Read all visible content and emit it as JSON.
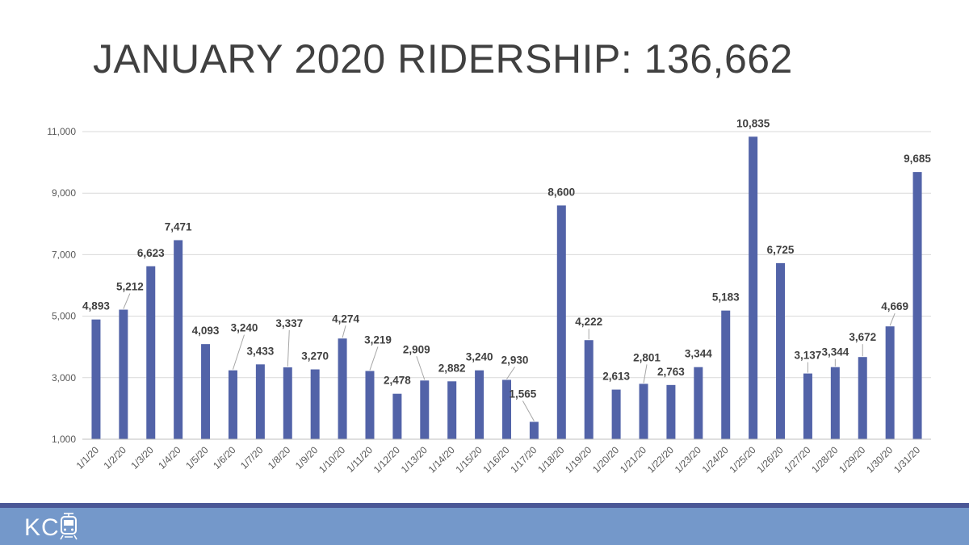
{
  "title": "JANUARY 2020 RIDERSHIP: 136,662",
  "footer": {
    "logo_text": "KC",
    "logo_icon": "streetcar-icon"
  },
  "colors": {
    "bar": "#5263a8",
    "footer_band": "#7498ca",
    "footer_stripe": "#4a5796",
    "title": "#404040"
  },
  "chart_data": {
    "type": "bar",
    "title": "",
    "xlabel": "",
    "ylabel": "",
    "ylim": [
      1000,
      11000
    ],
    "yticks": [
      1000,
      3000,
      5000,
      7000,
      9000,
      11000
    ],
    "ytick_labels": [
      "1,000",
      "3,000",
      "5,000",
      "7,000",
      "9,000",
      "11,000"
    ],
    "grid": true,
    "legend": "none",
    "categories": [
      "1/1/20",
      "1/2/20",
      "1/3/20",
      "1/4/20",
      "1/5/20",
      "1/6/20",
      "1/7/20",
      "1/8/20",
      "1/9/20",
      "1/10/20",
      "1/11/20",
      "1/12/20",
      "1/13/20",
      "1/14/20",
      "1/15/20",
      "1/16/20",
      "1/17/20",
      "1/18/20",
      "1/19/20",
      "1/20/20",
      "1/21/20",
      "1/22/20",
      "1/23/20",
      "1/24/20",
      "1/25/20",
      "1/26/20",
      "1/27/20",
      "1/28/20",
      "1/29/20",
      "1/30/20",
      "1/31/20"
    ],
    "values": [
      4893,
      5212,
      6623,
      7471,
      4093,
      3240,
      3433,
      3337,
      3270,
      4274,
      3219,
      2478,
      2909,
      2882,
      3240,
      2930,
      1565,
      8600,
      4222,
      2613,
      2801,
      2763,
      3344,
      5183,
      10835,
      6725,
      3137,
      3344,
      3672,
      4669,
      9685
    ],
    "value_labels": [
      "4,893",
      "5,212",
      "6,623",
      "7,471",
      "4,093",
      "3,240",
      "3,433",
      "3,337",
      "3,270",
      "4,274",
      "3,219",
      "2,478",
      "2,909",
      "2,882",
      "3,240",
      "2,930",
      "1,565",
      "8,600",
      "4,222",
      "2,613",
      "2,801",
      "2,763",
      "3,344",
      "5,183",
      "10,835",
      "6,725",
      "3,137",
      "3,344",
      "3,672",
      "4,669",
      "9,685"
    ]
  }
}
